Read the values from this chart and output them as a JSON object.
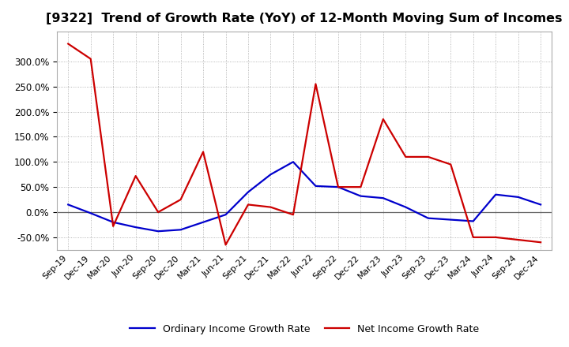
{
  "title": "[9322]  Trend of Growth Rate (YoY) of 12-Month Moving Sum of Incomes",
  "title_fontsize": 11.5,
  "ylim": [
    -75,
    360
  ],
  "yticks": [
    -50,
    0,
    50,
    100,
    150,
    200,
    250,
    300
  ],
  "background_color": "#ffffff",
  "plot_bg_color": "#ffffff",
  "grid_color": "#999999",
  "zero_line_color": "#666666",
  "ordinary_color": "#0000cc",
  "net_color": "#cc0000",
  "legend_ordinary": "Ordinary Income Growth Rate",
  "legend_net": "Net Income Growth Rate",
  "x_labels": [
    "Sep-19",
    "Dec-19",
    "Mar-20",
    "Jun-20",
    "Sep-20",
    "Dec-20",
    "Mar-21",
    "Jun-21",
    "Sep-21",
    "Dec-21",
    "Mar-22",
    "Jun-22",
    "Sep-22",
    "Dec-22",
    "Mar-23",
    "Jun-23",
    "Sep-23",
    "Dec-23",
    "Mar-24",
    "Jun-24",
    "Sep-24",
    "Dec-24"
  ],
  "ordinary_values": [
    15,
    -2,
    -20,
    -30,
    -38,
    -35,
    -20,
    -5,
    40,
    75,
    100,
    52,
    50,
    32,
    28,
    10,
    -12,
    -15,
    -18,
    35,
    30,
    15
  ],
  "net_values": [
    335,
    305,
    -28,
    72,
    0,
    25,
    120,
    -65,
    15,
    10,
    -5,
    255,
    50,
    50,
    185,
    110,
    110,
    95,
    -50,
    -50,
    -55,
    -60
  ]
}
